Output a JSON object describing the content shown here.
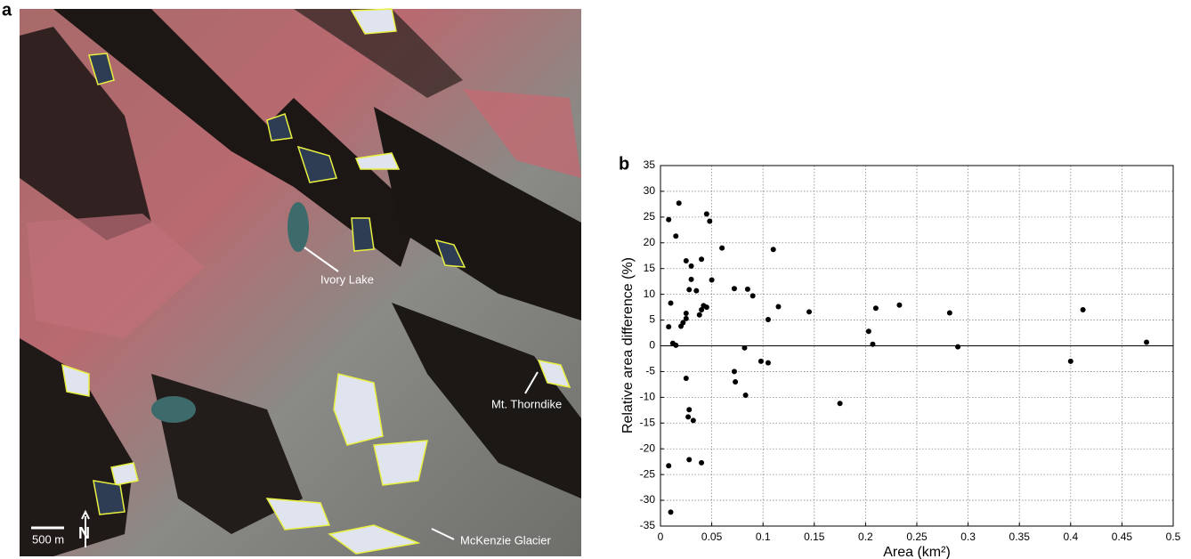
{
  "panel_a": {
    "label": "a",
    "annotations": [
      "Ivory Lake",
      "Mt. Thorndike",
      "McKenzie Glacier"
    ],
    "scale_bar": "500 m",
    "north": "N"
  },
  "chart_data": {
    "type": "scatter",
    "panel_label": "b",
    "x_label": "Area (km²)",
    "y_label": "Relative area difference (%)",
    "color": "#000000",
    "grid": true,
    "zero_line": true,
    "xlim": [
      0,
      0.5
    ],
    "xticks": [
      0,
      0.05,
      0.1,
      0.15,
      0.2,
      0.25,
      0.3,
      0.35,
      0.4,
      0.45,
      0.5
    ],
    "ylim": [
      -35,
      35
    ],
    "yticks": [
      -35,
      -30,
      -25,
      -20,
      -15,
      -10,
      -5,
      0,
      5,
      10,
      15,
      20,
      25,
      30,
      35
    ],
    "x": [
      0.008,
      0.015,
      0.018,
      0.01,
      0.008,
      0.012,
      0.015,
      0.02,
      0.022,
      0.025,
      0.025,
      0.025,
      0.03,
      0.03,
      0.028,
      0.035,
      0.04,
      0.038,
      0.04,
      0.042,
      0.045,
      0.045,
      0.048,
      0.05,
      0.06,
      0.072,
      0.085,
      0.09,
      0.11,
      0.105,
      0.115,
      0.145,
      0.21,
      0.233,
      0.282,
      0.412,
      0.474,
      0.082,
      0.098,
      0.105,
      0.072,
      0.073,
      0.083,
      0.025,
      0.028,
      0.027,
      0.032,
      0.175,
      0.203,
      0.207,
      0.29,
      0.4,
      0.008,
      0.028,
      0.04,
      0.01
    ],
    "values": [
      24.5,
      21.3,
      27.7,
      8.3,
      3.7,
      0.5,
      0.1,
      3.8,
      4.5,
      5.3,
      6.3,
      16.5,
      15.5,
      12.9,
      10.9,
      10.7,
      16.8,
      6,
      7,
      7.8,
      7.5,
      25.6,
      24.2,
      12.8,
      19,
      11.1,
      11,
      9.7,
      18.7,
      5.1,
      7.6,
      6.6,
      7.3,
      7.9,
      6.4,
      7,
      0.7,
      -0.4,
      -3,
      -3.3,
      -5,
      -7,
      -9.6,
      -6.3,
      -12.4,
      -13.8,
      -14.5,
      -11.2,
      2.8,
      0.3,
      -0.2,
      -3,
      -23.3,
      -22.1,
      -22.7,
      -32.3
    ]
  }
}
